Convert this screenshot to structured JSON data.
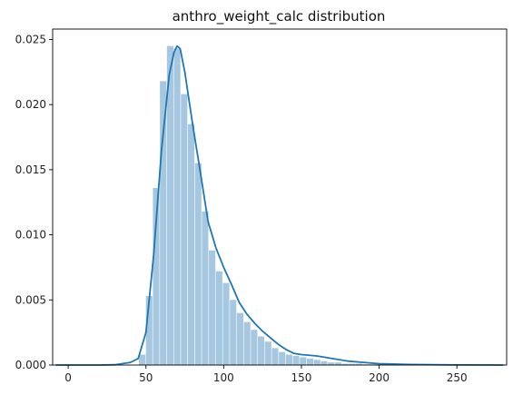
{
  "chart_data": {
    "type": "bar",
    "title": "anthro_weight_calc distribution",
    "xlabel": "",
    "ylabel": "",
    "xlim": [
      -10,
      282
    ],
    "ylim": [
      0,
      0.0258
    ],
    "x_ticks": [
      0,
      50,
      100,
      150,
      200,
      250
    ],
    "x_tick_labels": [
      "0",
      "50",
      "100",
      "150",
      "200",
      "250"
    ],
    "y_ticks": [
      0,
      0.005,
      0.01,
      0.015,
      0.02,
      0.025
    ],
    "y_tick_labels": [
      "0.000",
      "0.005",
      "0.010",
      "0.015",
      "0.020",
      "0.025"
    ],
    "grid": false,
    "colors": {
      "bars": "#a6c7e0",
      "kde": "#1f77b4",
      "axes": "#000000"
    },
    "histogram": {
      "bin_edges": [
        45.5,
        50.0,
        54.5,
        59.0,
        63.5,
        68.0,
        72.5,
        77.0,
        81.5,
        86.0,
        90.5,
        95.0,
        99.5,
        104.0,
        108.5,
        113.0,
        117.5,
        122.0,
        126.5,
        131.0,
        135.5,
        140.0,
        144.5,
        149.0,
        153.5,
        158.0,
        162.5,
        167.0,
        171.5,
        176.0,
        180.5,
        185.0,
        189.5,
        194.0,
        198.5
      ],
      "values": [
        0.0008,
        0.0053,
        0.0136,
        0.0218,
        0.0245,
        0.0243,
        0.0208,
        0.0185,
        0.0155,
        0.0118,
        0.0088,
        0.0072,
        0.0063,
        0.005,
        0.004,
        0.0033,
        0.0027,
        0.0022,
        0.0018,
        0.0013,
        0.001,
        0.0008,
        0.0007,
        0.0006,
        0.0005,
        0.0004,
        0.0003,
        0.0002,
        0.0002,
        0.0001,
        0.0001,
        0.0001,
        5e-05,
        5e-05
      ]
    },
    "kde": {
      "x": [
        -8,
        20,
        30,
        40,
        45,
        50,
        55,
        60,
        65,
        68,
        70,
        72,
        75,
        80,
        85,
        90,
        95,
        100,
        105,
        110,
        115,
        120,
        125,
        130,
        135,
        140,
        145,
        150,
        160,
        170,
        180,
        190,
        200,
        220,
        250,
        280
      ],
      "y": [
        0,
        0,
        2e-05,
        0.0002,
        0.0005,
        0.0025,
        0.0085,
        0.0165,
        0.0223,
        0.024,
        0.0245,
        0.0243,
        0.0225,
        0.0185,
        0.0148,
        0.011,
        0.009,
        0.0075,
        0.0062,
        0.0048,
        0.0039,
        0.0032,
        0.0026,
        0.0021,
        0.0016,
        0.0012,
        0.0009,
        0.0008,
        0.0007,
        0.0005,
        0.0003,
        0.0002,
        0.0001,
        4e-05,
        1e-05,
        0
      ]
    }
  }
}
